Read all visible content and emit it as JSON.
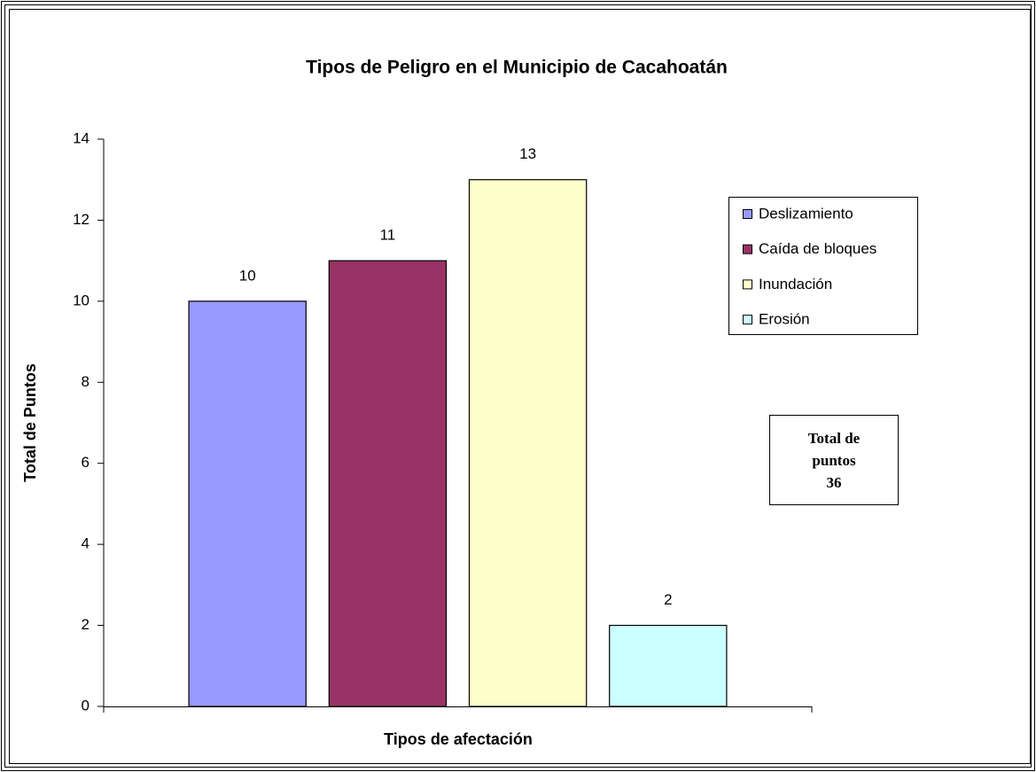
{
  "chart_data": {
    "type": "bar",
    "title": "Tipos de Peligro en el Municipio de Cacahoatán",
    "xlabel": "Tipos de afectación",
    "ylabel": "Total de Puntos",
    "categories": [
      null
    ],
    "series": [
      {
        "name": "Deslizamiento",
        "color": "#9999ff",
        "values": [
          10
        ]
      },
      {
        "name": "Caída de bloques",
        "color": "#993366",
        "values": [
          11
        ]
      },
      {
        "name": "Inundación",
        "color": "#ffffcc",
        "values": [
          13
        ]
      },
      {
        "name": "Erosión",
        "color": "#ccffff",
        "values": [
          2
        ]
      }
    ],
    "ylim": [
      0,
      14
    ],
    "yticks": [
      0,
      2,
      4,
      6,
      8,
      10,
      12,
      14
    ],
    "legend": "right",
    "annotation": [
      "Total de",
      "puntos",
      "36"
    ]
  }
}
